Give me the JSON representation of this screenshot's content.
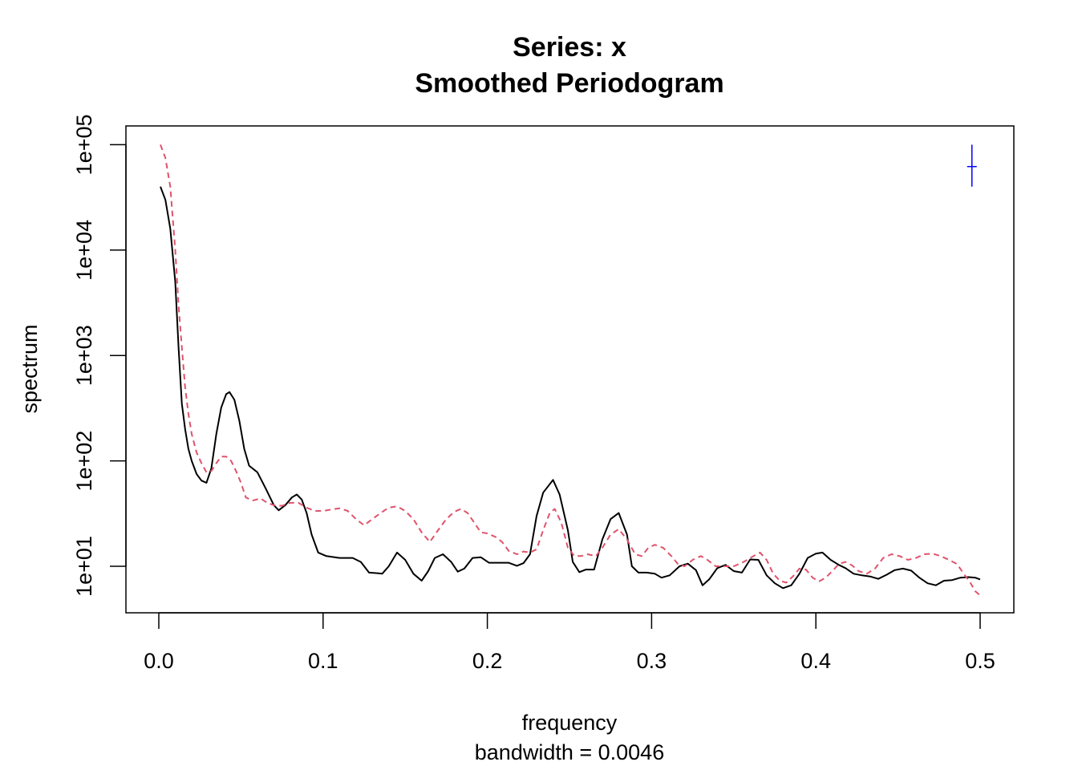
{
  "chart_data": {
    "type": "line",
    "title": "Series: x",
    "subtitle": "Smoothed Periodogram",
    "xlabel": "frequency",
    "xsublabel": "bandwidth = 0.0046",
    "ylabel": "spectrum",
    "y_scale": "log",
    "xlim": [
      0,
      0.5
    ],
    "ylim": [
      5,
      100000
    ],
    "x_ticks": [
      0.0,
      0.1,
      0.2,
      0.3,
      0.4,
      0.5
    ],
    "x_tick_labels": [
      "0.0",
      "0.1",
      "0.2",
      "0.3",
      "0.4",
      "0.5"
    ],
    "y_ticks": [
      10,
      100,
      1000,
      10000,
      100000
    ],
    "y_tick_labels": [
      "1e+01",
      "1e+02",
      "1e+03",
      "1e+04",
      "1e+05"
    ],
    "grid": false,
    "legend": "none",
    "series": [
      {
        "color": "#000000",
        "style": "solid",
        "points": [
          [
            0.001,
            40000
          ],
          [
            0.004,
            30000
          ],
          [
            0.007,
            16000
          ],
          [
            0.01,
            5000
          ],
          [
            0.012,
            1200
          ],
          [
            0.014,
            350
          ],
          [
            0.016,
            200
          ],
          [
            0.018,
            130
          ],
          [
            0.02,
            100
          ],
          [
            0.023,
            75
          ],
          [
            0.026,
            65
          ],
          [
            0.029,
            62
          ],
          [
            0.032,
            85
          ],
          [
            0.035,
            180
          ],
          [
            0.038,
            320
          ],
          [
            0.041,
            430
          ],
          [
            0.043,
            450
          ],
          [
            0.046,
            380
          ],
          [
            0.049,
            240
          ],
          [
            0.052,
            130
          ],
          [
            0.055,
            90
          ],
          [
            0.06,
            78
          ],
          [
            0.065,
            55
          ],
          [
            0.07,
            38
          ],
          [
            0.073,
            34
          ],
          [
            0.077,
            38
          ],
          [
            0.081,
            45
          ],
          [
            0.084,
            48
          ],
          [
            0.087,
            43
          ],
          [
            0.09,
            32
          ],
          [
            0.093,
            20
          ],
          [
            0.097,
            13.5
          ],
          [
            0.102,
            12.5
          ],
          [
            0.11,
            12
          ],
          [
            0.118,
            12
          ],
          [
            0.123,
            11
          ],
          [
            0.128,
            8.7
          ],
          [
            0.133,
            8.6
          ],
          [
            0.136,
            8.5
          ],
          [
            0.14,
            10
          ],
          [
            0.145,
            13.5
          ],
          [
            0.15,
            11.5
          ],
          [
            0.155,
            8.5
          ],
          [
            0.16,
            7.3
          ],
          [
            0.164,
            9
          ],
          [
            0.168,
            12
          ],
          [
            0.173,
            13
          ],
          [
            0.178,
            11
          ],
          [
            0.182,
            8.9
          ],
          [
            0.186,
            9.5
          ],
          [
            0.191,
            12
          ],
          [
            0.196,
            12.2
          ],
          [
            0.201,
            10.8
          ],
          [
            0.208,
            10.8
          ],
          [
            0.213,
            10.8
          ],
          [
            0.218,
            10.1
          ],
          [
            0.222,
            10.7
          ],
          [
            0.226,
            13
          ],
          [
            0.23,
            30
          ],
          [
            0.234,
            50
          ],
          [
            0.24,
            66
          ],
          [
            0.244,
            48
          ],
          [
            0.249,
            22
          ],
          [
            0.252,
            11
          ],
          [
            0.256,
            8.8
          ],
          [
            0.26,
            9.3
          ],
          [
            0.265,
            9.3
          ],
          [
            0.27,
            18
          ],
          [
            0.275,
            28
          ],
          [
            0.28,
            32
          ],
          [
            0.285,
            20
          ],
          [
            0.288,
            10
          ],
          [
            0.292,
            8.7
          ],
          [
            0.297,
            8.7
          ],
          [
            0.302,
            8.5
          ],
          [
            0.306,
            7.8
          ],
          [
            0.311,
            8.2
          ],
          [
            0.317,
            10
          ],
          [
            0.322,
            10.6
          ],
          [
            0.327,
            9.2
          ],
          [
            0.331,
            6.6
          ],
          [
            0.335,
            7.5
          ],
          [
            0.34,
            9.6
          ],
          [
            0.345,
            10.3
          ],
          [
            0.35,
            9
          ],
          [
            0.355,
            8.7
          ],
          [
            0.36,
            11.6
          ],
          [
            0.365,
            11.5
          ],
          [
            0.37,
            8.2
          ],
          [
            0.375,
            6.9
          ],
          [
            0.38,
            6.2
          ],
          [
            0.385,
            6.6
          ],
          [
            0.39,
            8.5
          ],
          [
            0.395,
            12
          ],
          [
            0.4,
            13.2
          ],
          [
            0.404,
            13.5
          ],
          [
            0.409,
            11.5
          ],
          [
            0.414,
            10.3
          ],
          [
            0.418,
            9.6
          ],
          [
            0.423,
            8.5
          ],
          [
            0.428,
            8.2
          ],
          [
            0.433,
            8.0
          ],
          [
            0.438,
            7.6
          ],
          [
            0.443,
            8.3
          ],
          [
            0.448,
            9.2
          ],
          [
            0.453,
            9.5
          ],
          [
            0.458,
            9.1
          ],
          [
            0.463,
            7.8
          ],
          [
            0.468,
            6.9
          ],
          [
            0.473,
            6.6
          ],
          [
            0.478,
            7.3
          ],
          [
            0.483,
            7.4
          ],
          [
            0.488,
            7.8
          ],
          [
            0.493,
            7.9
          ],
          [
            0.497,
            7.8
          ],
          [
            0.5,
            7.5
          ]
        ]
      },
      {
        "color": "#df536b",
        "style": "dashed",
        "points": [
          [
            0.001,
            100000
          ],
          [
            0.004,
            75000
          ],
          [
            0.007,
            40000
          ],
          [
            0.01,
            10000
          ],
          [
            0.012,
            3000
          ],
          [
            0.014,
            1200
          ],
          [
            0.016,
            500
          ],
          [
            0.018,
            280
          ],
          [
            0.02,
            180
          ],
          [
            0.023,
            120
          ],
          [
            0.026,
            95
          ],
          [
            0.029,
            78
          ],
          [
            0.032,
            80
          ],
          [
            0.035,
            95
          ],
          [
            0.038,
            110
          ],
          [
            0.041,
            110
          ],
          [
            0.044,
            100
          ],
          [
            0.047,
            80
          ],
          [
            0.05,
            62
          ],
          [
            0.053,
            45
          ],
          [
            0.057,
            42
          ],
          [
            0.062,
            44
          ],
          [
            0.066,
            40
          ],
          [
            0.07,
            38
          ],
          [
            0.075,
            37.5
          ],
          [
            0.08,
            40
          ],
          [
            0.085,
            40
          ],
          [
            0.09,
            36
          ],
          [
            0.095,
            33.5
          ],
          [
            0.1,
            33.5
          ],
          [
            0.105,
            34.5
          ],
          [
            0.11,
            35.5
          ],
          [
            0.115,
            33.5
          ],
          [
            0.12,
            28
          ],
          [
            0.125,
            24.5
          ],
          [
            0.13,
            28
          ],
          [
            0.135,
            32
          ],
          [
            0.14,
            36
          ],
          [
            0.145,
            37
          ],
          [
            0.15,
            33.5
          ],
          [
            0.155,
            28
          ],
          [
            0.16,
            21
          ],
          [
            0.165,
            17
          ],
          [
            0.17,
            22
          ],
          [
            0.175,
            28
          ],
          [
            0.18,
            33
          ],
          [
            0.184,
            35
          ],
          [
            0.188,
            32
          ],
          [
            0.192,
            26
          ],
          [
            0.196,
            21
          ],
          [
            0.2,
            20.5
          ],
          [
            0.205,
            19
          ],
          [
            0.209,
            17
          ],
          [
            0.213,
            14
          ],
          [
            0.218,
            13
          ],
          [
            0.222,
            13.8
          ],
          [
            0.226,
            13.5
          ],
          [
            0.23,
            14.5
          ],
          [
            0.234,
            22
          ],
          [
            0.238,
            32
          ],
          [
            0.241,
            35
          ],
          [
            0.245,
            26
          ],
          [
            0.249,
            15
          ],
          [
            0.253,
            12.5
          ],
          [
            0.257,
            12.5
          ],
          [
            0.261,
            13
          ],
          [
            0.266,
            12.5
          ],
          [
            0.27,
            15
          ],
          [
            0.275,
            20
          ],
          [
            0.28,
            22.5
          ],
          [
            0.285,
            18
          ],
          [
            0.29,
            13
          ],
          [
            0.294,
            12.5
          ],
          [
            0.298,
            15
          ],
          [
            0.302,
            16
          ],
          [
            0.307,
            15
          ],
          [
            0.312,
            12.5
          ],
          [
            0.316,
            10.5
          ],
          [
            0.32,
            10
          ],
          [
            0.325,
            11.5
          ],
          [
            0.33,
            12.5
          ],
          [
            0.334,
            11.5
          ],
          [
            0.339,
            10
          ],
          [
            0.344,
            10
          ],
          [
            0.35,
            10
          ],
          [
            0.356,
            11
          ],
          [
            0.362,
            12.5
          ],
          [
            0.366,
            13.5
          ],
          [
            0.37,
            11.5
          ],
          [
            0.374,
            8.5
          ],
          [
            0.378,
            7.3
          ],
          [
            0.382,
            7.0
          ],
          [
            0.386,
            8
          ],
          [
            0.39,
            9.5
          ],
          [
            0.394,
            9.3
          ],
          [
            0.398,
            7.8
          ],
          [
            0.402,
            7.2
          ],
          [
            0.406,
            7.8
          ],
          [
            0.41,
            9
          ],
          [
            0.414,
            10.5
          ],
          [
            0.418,
            11.0
          ],
          [
            0.422,
            10.2
          ],
          [
            0.426,
            9
          ],
          [
            0.431,
            8.5
          ],
          [
            0.436,
            9.5
          ],
          [
            0.441,
            12
          ],
          [
            0.446,
            13.0
          ],
          [
            0.451,
            12.5
          ],
          [
            0.456,
            11.5
          ],
          [
            0.461,
            12
          ],
          [
            0.466,
            13
          ],
          [
            0.471,
            13.2
          ],
          [
            0.476,
            12.5
          ],
          [
            0.481,
            11.5
          ],
          [
            0.486,
            10.5
          ],
          [
            0.49,
            8.5
          ],
          [
            0.494,
            7
          ],
          [
            0.497,
            5.8
          ],
          [
            0.5,
            5.3
          ]
        ]
      }
    ],
    "ci_bar": {
      "x": 0.495,
      "y_center": 62000,
      "y_low": 40000,
      "y_high": 100000,
      "color": "#0000ff"
    }
  }
}
